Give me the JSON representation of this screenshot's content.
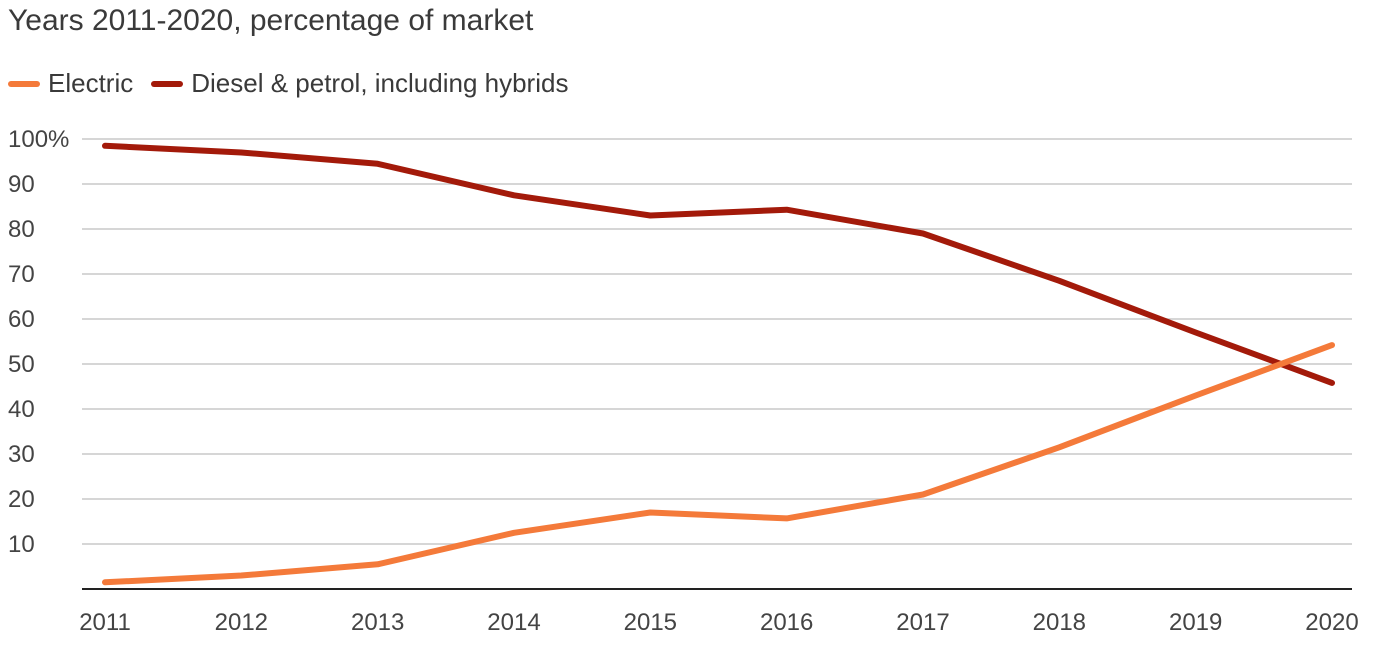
{
  "colors": {
    "electric": "#f47a3a",
    "diesel": "#a31a0a",
    "grid": "#c8c8c8",
    "axis": "#222222"
  },
  "chart_data": {
    "type": "line",
    "title": "",
    "subtitle": "Years 2011-2020, percentage of market",
    "xlabel": "",
    "ylabel": "",
    "x": [
      "2011",
      "2012",
      "2013",
      "2014",
      "2015",
      "2016",
      "2017",
      "2018",
      "2019",
      "2020"
    ],
    "ylim": [
      0,
      100
    ],
    "yticks": [
      10,
      20,
      30,
      40,
      50,
      60,
      70,
      80,
      90,
      100
    ],
    "ytick_labels": [
      "10",
      "20",
      "30",
      "40",
      "50",
      "60",
      "70",
      "80",
      "90",
      "100%"
    ],
    "grid": true,
    "legend_position": "top-left",
    "series": [
      {
        "name": "Electric",
        "color_key": "electric",
        "values": [
          1.5,
          3,
          5.5,
          12.5,
          17,
          15.7,
          21,
          31.5,
          43,
          54.2
        ]
      },
      {
        "name": "Diesel & petrol, including hybrids",
        "color_key": "diesel",
        "values": [
          98.5,
          97,
          94.5,
          87.5,
          83,
          84.3,
          79,
          68.5,
          57,
          45.8
        ]
      }
    ]
  }
}
